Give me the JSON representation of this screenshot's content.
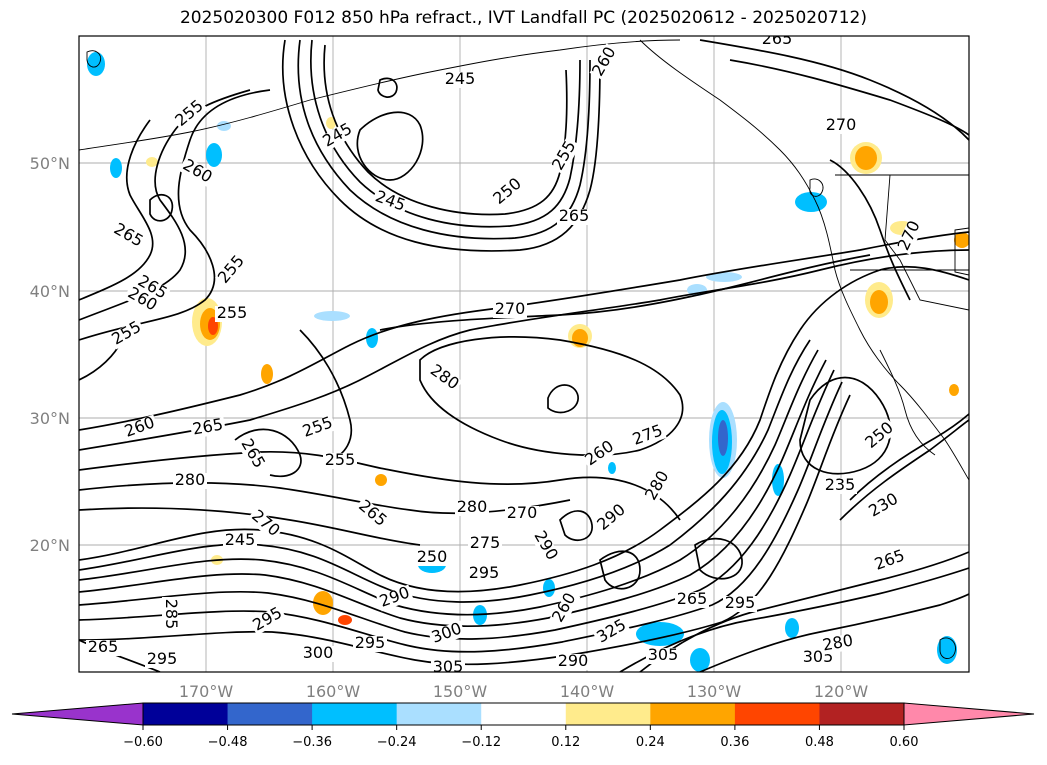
{
  "title": "2025020300 F012 850 hPa refract., IVT Landfall PC (2025020612 - 2025020712)",
  "map": {
    "lat_ticks": [
      "50°N",
      "40°N",
      "30°N",
      "20°N"
    ],
    "lon_ticks": [
      "170°W",
      "160°W",
      "150°W",
      "140°W",
      "130°W",
      "120°W"
    ],
    "grid": true
  },
  "colorbar": {
    "ticks": [
      "−0.60",
      "−0.48",
      "−0.36",
      "−0.24",
      "−0.12",
      "0.12",
      "0.24",
      "0.36",
      "0.48",
      "0.60"
    ],
    "colors": [
      "#9933cc",
      "#000099",
      "#3366cc",
      "#00bfff",
      "#aadfff",
      "#ffffff",
      "#ffeb8c",
      "#ffa500",
      "#ff4500",
      "#b22222",
      "#ff88aa"
    ]
  },
  "colors": {
    "blue_fill": "#00bfff",
    "light_blue_fill": "#aadfff",
    "dark_blue_fill": "#3366cc",
    "yellow_fill": "#ffeb8c",
    "orange_fill": "#ffa500",
    "red_fill": "#ff4500"
  },
  "contour_labels": [
    {
      "text": "265"
    },
    {
      "text": "245"
    },
    {
      "text": "260"
    },
    {
      "text": "255"
    },
    {
      "text": "270"
    },
    {
      "text": "245"
    },
    {
      "text": "255"
    },
    {
      "text": "255"
    },
    {
      "text": "250"
    },
    {
      "text": "245"
    },
    {
      "text": "265"
    },
    {
      "text": "270"
    },
    {
      "text": "260"
    },
    {
      "text": "265"
    },
    {
      "text": "265"
    },
    {
      "text": "260"
    },
    {
      "text": "255"
    },
    {
      "text": "255"
    },
    {
      "text": "270"
    },
    {
      "text": "280"
    },
    {
      "text": "265"
    },
    {
      "text": "260"
    },
    {
      "text": "265"
    },
    {
      "text": "260"
    },
    {
      "text": "255"
    },
    {
      "text": "280"
    },
    {
      "text": "275"
    },
    {
      "text": "280"
    },
    {
      "text": "280"
    },
    {
      "text": "270"
    },
    {
      "text": "290"
    },
    {
      "text": "265"
    },
    {
      "text": "295"
    },
    {
      "text": "290"
    },
    {
      "text": "295"
    },
    {
      "text": "265"
    },
    {
      "text": "295"
    },
    {
      "text": "300"
    },
    {
      "text": "300"
    },
    {
      "text": "295"
    },
    {
      "text": "305"
    },
    {
      "text": "290"
    },
    {
      "text": "305"
    },
    {
      "text": "305"
    },
    {
      "text": "280"
    },
    {
      "text": "260"
    },
    {
      "text": "325"
    },
    {
      "text": "250"
    },
    {
      "text": "235"
    },
    {
      "text": "230"
    },
    {
      "text": "245"
    },
    {
      "text": "255"
    },
    {
      "text": "270"
    },
    {
      "text": "265"
    },
    {
      "text": "250"
    },
    {
      "text": "275"
    },
    {
      "text": "290"
    },
    {
      "text": "265"
    },
    {
      "text": "295"
    },
    {
      "text": "285"
    }
  ]
}
